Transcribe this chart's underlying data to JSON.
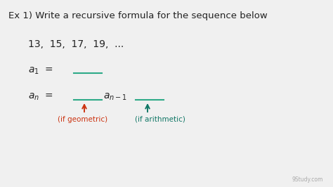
{
  "title": "Ex 1) Write a recursive formula for the sequence below",
  "sequence": "13,  15,  17,  19,  ...",
  "underline_color": "#2eaa88",
  "arrow_geometric_color": "#cc3311",
  "arrow_arithmetic_color": "#117766",
  "label_geometric": "(if geometric)",
  "label_arithmetic": "(if arithmetic)",
  "bg_color": "#f0f0f0",
  "text_color": "#222222",
  "watermark": "9Study.com",
  "title_fontsize": 9.5,
  "body_fontsize": 9.5,
  "label_fontsize": 7.5
}
